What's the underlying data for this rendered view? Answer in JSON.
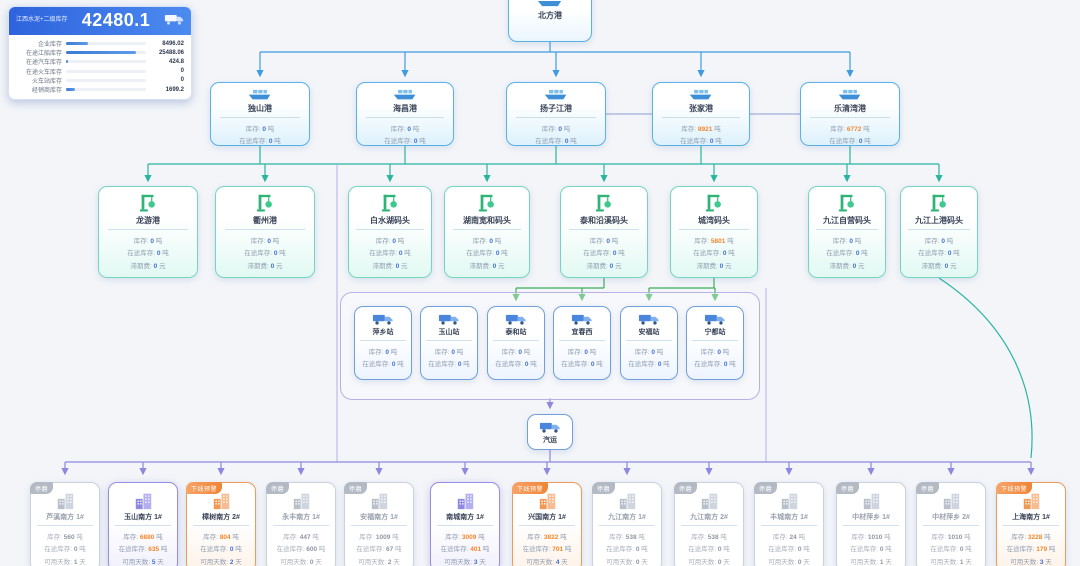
{
  "stats_panel": {
    "title": "江西水泥+二级库存",
    "total": "42480.1",
    "rows": [
      {
        "label": "企业库存",
        "value": "8496.02",
        "bar": 27
      },
      {
        "label": "在途江船库存",
        "value": "25488.06",
        "bar": 88
      },
      {
        "label": "在途汽车库存",
        "value": "424.8",
        "bar": 3
      },
      {
        "label": "在途火车库存",
        "value": "0",
        "bar": 0
      },
      {
        "label": "火车站库存",
        "value": "0",
        "bar": 0
      },
      {
        "label": "经销商库存",
        "value": "1699.2",
        "bar": 11
      }
    ]
  },
  "root": {
    "name": "北方港"
  },
  "ports": [
    {
      "name": "独山港",
      "stock": "0",
      "transit": "0"
    },
    {
      "name": "海昌港",
      "stock": "0",
      "transit": "0"
    },
    {
      "name": "扬子江港",
      "stock": "0",
      "transit": "0"
    },
    {
      "name": "张家港",
      "stock": "8921",
      "transit": "0"
    },
    {
      "name": "乐清湾港",
      "stock": "6772",
      "transit": "0"
    }
  ],
  "docks": [
    {
      "name": "龙游港",
      "stock": "0",
      "transit": "0",
      "demurrage": "0"
    },
    {
      "name": "衢州港",
      "stock": "0",
      "transit": "0",
      "demurrage": "0"
    },
    {
      "name": "白水湖码头",
      "stock": "0",
      "transit": "0",
      "demurrage": "0"
    },
    {
      "name": "湖南宽和码头",
      "stock": "0",
      "transit": "0",
      "demurrage": "0"
    },
    {
      "name": "泰和沿溪码头",
      "stock": "0",
      "transit": "0",
      "demurrage": "0"
    },
    {
      "name": "城湾码头",
      "stock": "5801",
      "transit": "0",
      "demurrage": "0"
    },
    {
      "name": "九江自营码头",
      "stock": "0",
      "transit": "0",
      "demurrage": "0"
    },
    {
      "name": "九江上港码头",
      "stock": "0",
      "transit": "0",
      "demurrage": "0"
    }
  ],
  "stations": [
    {
      "name": "萍乡站",
      "stock": "0",
      "transit": "0"
    },
    {
      "name": "玉山站",
      "stock": "0",
      "transit": "0"
    },
    {
      "name": "泰和站",
      "stock": "0",
      "transit": "0"
    },
    {
      "name": "宜春西",
      "stock": "0",
      "transit": "0"
    },
    {
      "name": "安福站",
      "stock": "0",
      "transit": "0"
    },
    {
      "name": "宁都站",
      "stock": "0",
      "transit": "0"
    }
  ],
  "transport": {
    "name": "汽运"
  },
  "dealers": [
    {
      "name": "芦溪南方 1#",
      "state": "idle",
      "tag": "停磨",
      "stock": "560",
      "transit": "0",
      "days": "1"
    },
    {
      "name": "玉山南方 1#",
      "state": "active",
      "tag": "",
      "stock": "6880",
      "transit": "635",
      "days": "5"
    },
    {
      "name": "樟树南方 2#",
      "state": "warning",
      "tag": "下线预警",
      "stock": "804",
      "transit": "0",
      "days": "2"
    },
    {
      "name": "永丰南方 1#",
      "state": "idle",
      "tag": "停磨",
      "stock": "447",
      "transit": "600",
      "days": "0"
    },
    {
      "name": "安福南方 1#",
      "state": "idle",
      "tag": "停磨",
      "stock": "1009",
      "transit": "67",
      "days": "2"
    },
    {
      "name": "南城南方 1#",
      "state": "active",
      "tag": "",
      "stock": "3009",
      "transit": "401",
      "days": "3"
    },
    {
      "name": "兴国南方 1#",
      "state": "warning",
      "tag": "下线预警",
      "stock": "3822",
      "transit": "701",
      "days": "4"
    },
    {
      "name": "九江南方 1#",
      "state": "idle",
      "tag": "停磨",
      "stock": "538",
      "transit": "0",
      "days": "0"
    },
    {
      "name": "九江南方 2#",
      "state": "idle",
      "tag": "停磨",
      "stock": "538",
      "transit": "0",
      "days": "0"
    },
    {
      "name": "丰城南方 1#",
      "state": "idle",
      "tag": "停磨",
      "stock": "24",
      "transit": "0",
      "days": "0"
    },
    {
      "name": "中材萍乡 1#",
      "state": "idle",
      "tag": "停磨",
      "stock": "1010",
      "transit": "0",
      "days": "1"
    },
    {
      "name": "中材萍乡 2#",
      "state": "idle",
      "tag": "停磨",
      "stock": "1010",
      "transit": "0",
      "days": "1"
    },
    {
      "name": "上海南方 1#",
      "state": "warning",
      "tag": "下线预警",
      "stock": "3228",
      "transit": "179",
      "days": "3"
    }
  ],
  "labels": {
    "stock": "库存:",
    "transit": "在途库存:",
    "demurrage": "滞期费:",
    "days": "可用天数:",
    "ton": "吨",
    "yuan": "元",
    "day": "天"
  },
  "colors": {
    "blue_line": "#3f9be0",
    "teal_line": "#2ab5a0",
    "green_line": "#3dae5b",
    "purple_line": "#8f86e0",
    "value_blue": "#3f6fd8",
    "value_orange": "#f5862e",
    "warning_tag": "#ef8436",
    "idle_tag": "#b3bac4",
    "header_blue": "#2e63dd"
  }
}
